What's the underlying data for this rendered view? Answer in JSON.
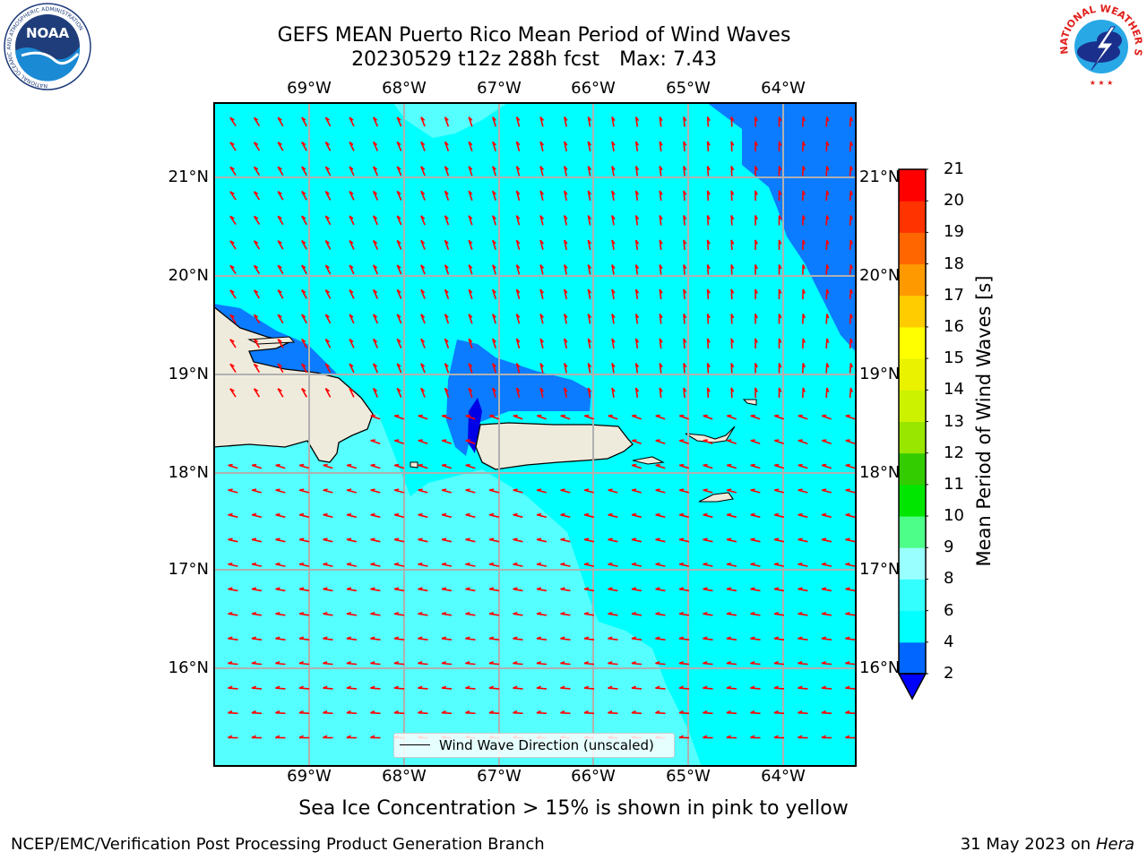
{
  "header": {
    "title_line1": "GEFS MEAN Puerto Rico Mean Period of Wind Waves",
    "title_date": "20230529 t12z 288h fcst",
    "title_max": "Max: 7.43"
  },
  "logos": {
    "left": {
      "name": "NOAA",
      "ring_text": "NATIONAL OCEANIC AND ATMOSPHERIC ADMINISTRATION",
      "bottom_text": "U.S. DEPARTMENT OF COMMERCE"
    },
    "right": {
      "ring_text": "NATIONAL WEATHER SERVICE"
    }
  },
  "map": {
    "lon_labels": [
      "69°W",
      "68°W",
      "67°W",
      "66°W",
      "65°W",
      "64°W"
    ],
    "lat_labels": [
      "21°N",
      "20°N",
      "19°N",
      "18°N",
      "17°N",
      "16°N"
    ],
    "arrow_color": "#ff0000",
    "land_color": "#efebdc",
    "legend": "Wind Wave Direction (unscaled)"
  },
  "colorbar": {
    "label": "Mean Period of Wind Waves [s]",
    "ticks": [
      "2",
      "4",
      "6",
      "8",
      "9",
      "10",
      "11",
      "12",
      "13",
      "14",
      "15",
      "16",
      "17",
      "18",
      "19",
      "20",
      "21"
    ],
    "colors": [
      "#0066ff",
      "#00ffff",
      "#33ffff",
      "#99ffff",
      "#4dff88",
      "#00e600",
      "#33cc00",
      "#99e600",
      "#ccf200",
      "#eaf200",
      "#ffff00",
      "#ffcc00",
      "#ff9900",
      "#ff6600",
      "#ff3300",
      "#ff0000"
    ],
    "under_color": "#0000ff"
  },
  "footer": {
    "note": "Sea Ice Concentration > 15% is shown in pink to yellow",
    "credit_left": "NCEP/EMC/Verification Post Processing Product Generation Branch",
    "credit_right_date": "31 May 2023 on",
    "credit_right_host": "Hera"
  }
}
